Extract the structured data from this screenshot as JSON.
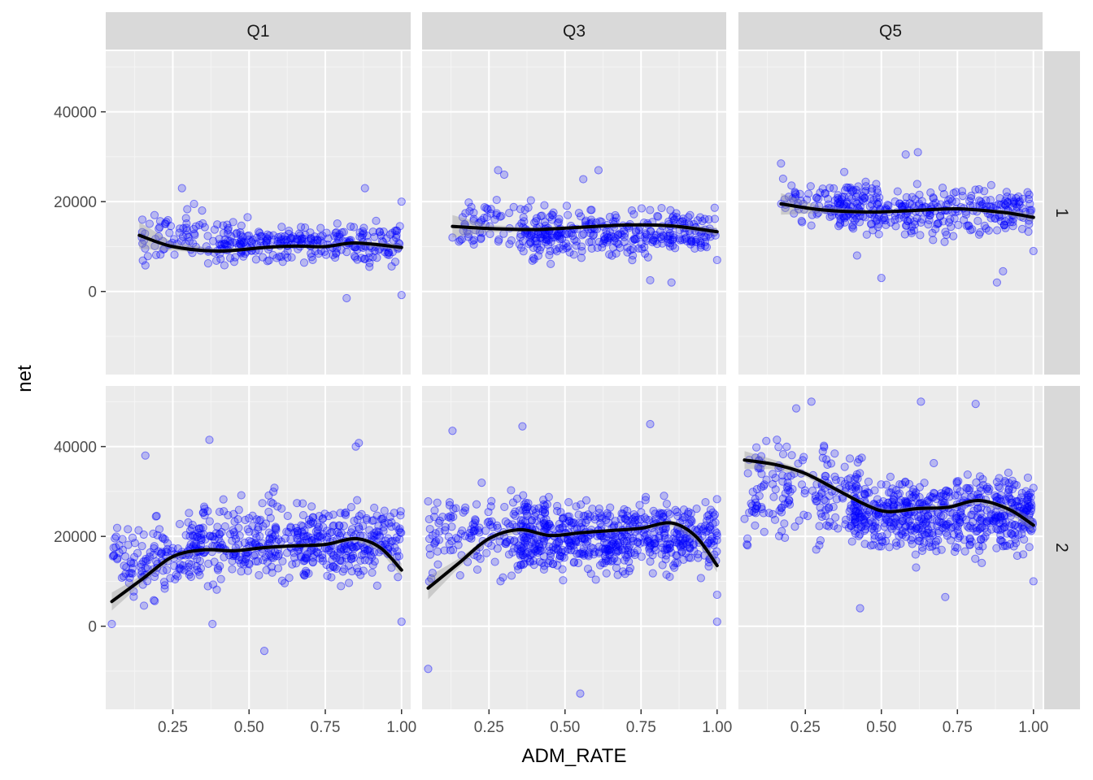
{
  "chart_data": {
    "type": "scatter",
    "xlabel": "ADM_RATE",
    "ylabel": "net",
    "col_facets": [
      "Q1",
      "Q3",
      "Q5"
    ],
    "row_facets": [
      "1",
      "2"
    ],
    "x_ticks": [
      0.25,
      0.5,
      0.75,
      1.0
    ],
    "x_tick_labels": [
      "0.25",
      "0.50",
      "0.75",
      "1.00"
    ],
    "xlim": [
      0.03,
      1.03
    ],
    "y_ticks": [
      0,
      20000,
      40000
    ],
    "y_tick_labels": [
      "0",
      "20000",
      "40000"
    ],
    "ylim": [
      -18500,
      53500
    ],
    "colors": {
      "points": "#0000ff",
      "smooth": "#000000",
      "band": "#999999",
      "panel": "#ebebeb",
      "strip": "#d9d9d9"
    },
    "panels": [
      {
        "col": "Q1",
        "row": "1",
        "smooth": {
          "x": [
            0.14,
            0.25,
            0.4,
            0.55,
            0.65,
            0.75,
            0.85,
            1.0
          ],
          "y": [
            12500,
            10000,
            9000,
            9800,
            10100,
            10000,
            10800,
            9800
          ]
        },
        "band_halfwidth": [
          3000,
          900,
          500,
          300,
          300,
          300,
          400,
          800
        ],
        "clusters": [
          {
            "x": [
              0.14,
              0.5
            ],
            "y": [
              2000,
              22000
            ],
            "n": 90
          },
          {
            "x": [
              0.4,
              1.0
            ],
            "y": [
              3000,
              18000
            ],
            "n": 260
          }
        ],
        "points": [
          [
            0.28,
            23000
          ],
          [
            0.88,
            23000
          ],
          [
            0.82,
            -1500
          ],
          [
            1.0,
            -800
          ],
          [
            0.15,
            16000
          ],
          [
            1.0,
            20000
          ],
          [
            0.19,
            17000
          ]
        ]
      },
      {
        "col": "Q3",
        "row": "1",
        "smooth": {
          "x": [
            0.13,
            0.25,
            0.4,
            0.55,
            0.7,
            0.85,
            1.0
          ],
          "y": [
            14500,
            14000,
            13800,
            14300,
            14800,
            14600,
            13300
          ]
        },
        "band_halfwidth": [
          2500,
          800,
          400,
          300,
          300,
          400,
          900
        ],
        "clusters": [
          {
            "x": [
              0.15,
              0.45
            ],
            "y": [
              6000,
              24000
            ],
            "n": 80
          },
          {
            "x": [
              0.35,
              1.0
            ],
            "y": [
              4000,
              22000
            ],
            "n": 320
          }
        ],
        "points": [
          [
            0.28,
            27000
          ],
          [
            0.61,
            27000
          ],
          [
            0.3,
            26000
          ],
          [
            0.56,
            25000
          ],
          [
            0.78,
            2500
          ],
          [
            0.85,
            2000
          ],
          [
            0.13,
            12000
          ],
          [
            1.0,
            7000
          ]
        ]
      },
      {
        "col": "Q5",
        "row": "1",
        "smooth": {
          "x": [
            0.17,
            0.3,
            0.45,
            0.6,
            0.75,
            0.9,
            1.0
          ],
          "y": [
            19500,
            18200,
            17700,
            18000,
            18400,
            17600,
            16500
          ]
        },
        "band_halfwidth": [
          2400,
          800,
          400,
          300,
          300,
          500,
          1000
        ],
        "clusters": [
          {
            "x": [
              0.17,
              0.45
            ],
            "y": [
              10000,
              28000
            ],
            "n": 80
          },
          {
            "x": [
              0.35,
              1.0
            ],
            "y": [
              8000,
              28000
            ],
            "n": 320
          }
        ],
        "points": [
          [
            0.62,
            31000
          ],
          [
            0.58,
            30500
          ],
          [
            0.17,
            28500
          ],
          [
            0.5,
            3000
          ],
          [
            0.88,
            2000
          ],
          [
            0.9,
            4500
          ],
          [
            0.42,
            8000
          ],
          [
            1.0,
            9000
          ]
        ]
      },
      {
        "col": "Q1",
        "row": "2",
        "smooth": {
          "x": [
            0.05,
            0.15,
            0.25,
            0.35,
            0.45,
            0.55,
            0.65,
            0.75,
            0.85,
            0.93,
            1.0
          ],
          "y": [
            5500,
            10500,
            15500,
            17000,
            16800,
            17500,
            17900,
            18200,
            19500,
            17500,
            12500
          ]
        },
        "band_halfwidth": [
          2000,
          900,
          600,
          500,
          400,
          400,
          400,
          400,
          500,
          800,
          1500
        ],
        "clusters": [
          {
            "x": [
              0.05,
              0.35
            ],
            "y": [
              0,
              30000
            ],
            "n": 140
          },
          {
            "x": [
              0.3,
              1.0
            ],
            "y": [
              4000,
              34000
            ],
            "n": 500
          }
        ],
        "points": [
          [
            0.55,
            -5500
          ],
          [
            0.37,
            41500
          ],
          [
            0.86,
            40800
          ],
          [
            0.85,
            40000
          ],
          [
            0.16,
            38000
          ],
          [
            0.05,
            500
          ],
          [
            1.0,
            1000
          ],
          [
            0.38,
            500
          ]
        ]
      },
      {
        "col": "Q3",
        "row": "2",
        "smooth": {
          "x": [
            0.05,
            0.15,
            0.25,
            0.35,
            0.45,
            0.55,
            0.65,
            0.75,
            0.85,
            0.93,
            1.0
          ],
          "y": [
            8500,
            14000,
            19500,
            21500,
            20200,
            20800,
            21300,
            21800,
            23000,
            20000,
            13500
          ]
        },
        "band_halfwidth": [
          2500,
          1000,
          600,
          500,
          400,
          400,
          400,
          400,
          500,
          900,
          1500
        ],
        "clusters": [
          {
            "x": [
              0.05,
              0.4
            ],
            "y": [
              4000,
              36000
            ],
            "n": 150
          },
          {
            "x": [
              0.35,
              1.0
            ],
            "y": [
              6000,
              34000
            ],
            "n": 600
          }
        ],
        "points": [
          [
            0.55,
            -15000
          ],
          [
            0.05,
            -9500
          ],
          [
            0.13,
            43500
          ],
          [
            0.78,
            45000
          ],
          [
            0.36,
            44500
          ],
          [
            0.08,
            27500
          ],
          [
            1.0,
            1000
          ],
          [
            1.0,
            7000
          ]
        ]
      },
      {
        "col": "Q5",
        "row": "2",
        "smooth": {
          "x": [
            0.05,
            0.15,
            0.25,
            0.35,
            0.45,
            0.52,
            0.62,
            0.72,
            0.82,
            0.92,
            1.0
          ],
          "y": [
            37000,
            36000,
            34000,
            30500,
            27000,
            25500,
            26200,
            26500,
            28000,
            26000,
            22500
          ]
        },
        "band_halfwidth": [
          2000,
          1000,
          700,
          600,
          500,
          500,
          500,
          500,
          600,
          900,
          1500
        ],
        "clusters": [
          {
            "x": [
              0.05,
              0.45
            ],
            "y": [
              12000,
              48000
            ],
            "n": 180
          },
          {
            "x": [
              0.4,
              1.0
            ],
            "y": [
              10000,
              40000
            ],
            "n": 600
          }
        ],
        "points": [
          [
            0.27,
            50000
          ],
          [
            0.63,
            50000
          ],
          [
            0.81,
            49500
          ],
          [
            0.22,
            48500
          ],
          [
            0.43,
            4000
          ],
          [
            0.71,
            6500
          ],
          [
            0.06,
            18000
          ],
          [
            1.0,
            10000
          ]
        ]
      }
    ]
  }
}
